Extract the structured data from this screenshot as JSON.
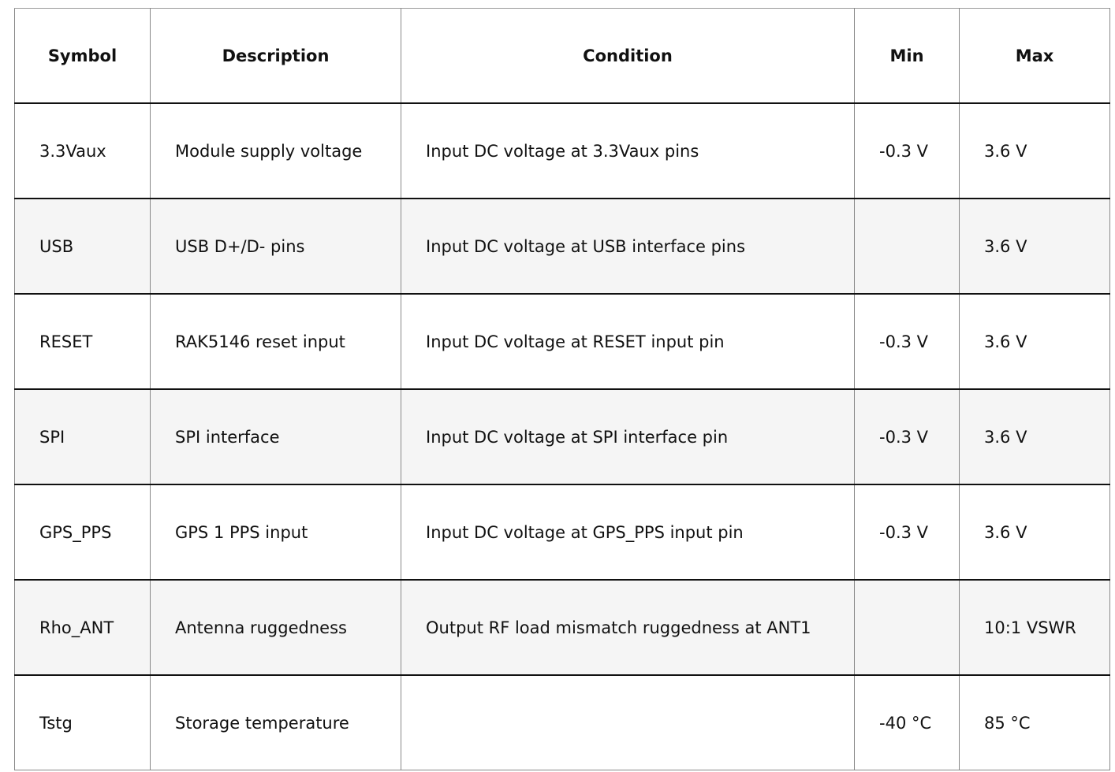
{
  "headers": [
    "Symbol",
    "Description",
    "Condition",
    "Min",
    "Max"
  ],
  "rows": [
    [
      "3.3Vaux",
      "Module supply voltage",
      "Input DC voltage at 3.3Vaux pins",
      "-0.3 V",
      "3.6 V"
    ],
    [
      "USB",
      "USB D+/D- pins",
      "Input DC voltage at USB interface pins",
      "",
      "3.6 V"
    ],
    [
      "RESET",
      "RAK5146 reset input",
      "Input DC voltage at RESET input pin",
      "-0.3 V",
      "3.6 V"
    ],
    [
      "SPI",
      "SPI interface",
      "Input DC voltage at SPI interface pin",
      "-0.3 V",
      "3.6 V"
    ],
    [
      "GPS_PPS",
      "GPS 1 PPS input",
      "Input DC voltage at GPS_PPS input pin",
      "-0.3 V",
      "3.6 V"
    ],
    [
      "Rho_ANT",
      "Antenna ruggedness",
      "Output RF load mismatch ruggedness at ANT1",
      "",
      "10:1 VSWR"
    ],
    [
      "Tstg",
      "Storage temperature",
      "",
      "-40 °C",
      "85 °C"
    ]
  ]
}
